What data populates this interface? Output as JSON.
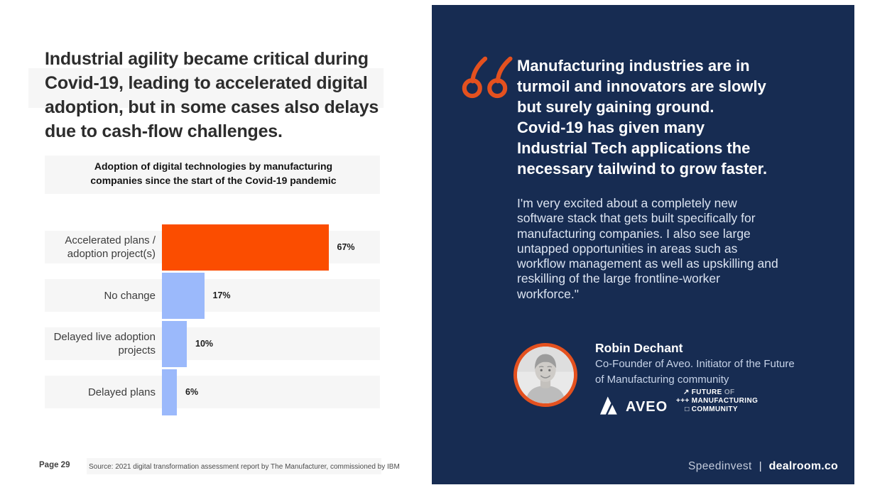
{
  "colors": {
    "panel_navy": "#172C52",
    "bar_orange": "#FB4D00",
    "bar_blue": "#9BB9FB",
    "accent_orange": "#E4511F"
  },
  "left_page": {
    "headline": "Industrial agility became critical during\nCovid-19, leading to accelerated digital\nadoption, but in some cases also delays\ndue to cash-flow challenges.",
    "page_label": "Page 29",
    "source": "Source: 2021 digital transformation assessment report by The Manufacturer, commissioned by IBM"
  },
  "chart_data": {
    "type": "bar",
    "orientation": "horizontal",
    "title": "Adoption of digital technologies by manufacturing\ncompanies since the start of the Covid-19 pandemic",
    "categories": [
      "Accelerated plans /\nadoption project(s)",
      "No change",
      "Delayed live adoption\nprojects",
      "Delayed plans"
    ],
    "values": [
      67,
      17,
      10,
      6
    ],
    "value_labels": [
      "67%",
      "17%",
      "10%",
      "6%"
    ],
    "bar_colors": [
      "#FB4D00",
      "#9BB9FB",
      "#9BB9FB",
      "#9BB9FB"
    ],
    "unit": "%",
    "xlim": [
      0,
      100
    ],
    "grid": false,
    "legend": false
  },
  "right_panel": {
    "quote_highlight": "Manufacturing industries are in\nturmoil and innovators are slowly\nbut surely gaining ground.\nCovid-19 has given many\nIndustrial Tech applications the\nnecessary tailwind to grow faster.",
    "quote_body": "I'm very excited about a completely new\nsoftware stack that gets built specifically for\nmanufacturing companies. I also see large\nuntapped opportunities in areas such as\nworkflow management as well as upskilling and\nreskilling of the large frontline-worker\nworkforce.\"",
    "author_name": "Robin Dechant",
    "author_title": "Co-Founder of Aveo. Initiator of the Future\nof Manufacturing community",
    "aveo_logo_text": "AVEO",
    "fom_logo": {
      "l1_prefix": "↗",
      "l1_text": "FUTURE ",
      "l1_suffix": "OF",
      "l2_prefix": "+++",
      "l2_text": "MANUFACTURING",
      "l3_prefix": "□",
      "l3_text": "COMMUNITY"
    },
    "footer_left": "Speedinvest",
    "footer_divider": "|",
    "footer_right": "dealroom.co"
  }
}
